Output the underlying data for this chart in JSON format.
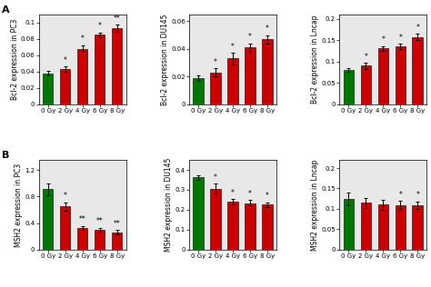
{
  "row_A": {
    "PC3": {
      "ylabel": "Bcl-2 expression in PC3",
      "ylim": [
        0,
        0.11
      ],
      "yticks": [
        0,
        0.02,
        0.04,
        0.06,
        0.08,
        0.1
      ],
      "values": [
        0.038,
        0.043,
        0.068,
        0.085,
        0.093
      ],
      "errors": [
        0.003,
        0.003,
        0.004,
        0.003,
        0.004
      ],
      "colors": [
        "#007700",
        "#cc0000",
        "#cc0000",
        "#cc0000",
        "#cc0000"
      ],
      "stars": [
        "",
        "*",
        "*",
        "*",
        "**"
      ]
    },
    "DU145": {
      "ylabel": "Bcl-2 expression in DU145",
      "ylim": [
        0,
        0.065
      ],
      "yticks": [
        0,
        0.02,
        0.04,
        0.06
      ],
      "values": [
        0.019,
        0.023,
        0.033,
        0.041,
        0.047
      ],
      "errors": [
        0.002,
        0.003,
        0.004,
        0.003,
        0.003
      ],
      "colors": [
        "#007700",
        "#cc0000",
        "#cc0000",
        "#cc0000",
        "#cc0000"
      ],
      "stars": [
        "",
        "*",
        "*",
        "*",
        "*"
      ]
    },
    "Lncap": {
      "ylabel": "Bcl-2 expression in Lncap",
      "ylim": [
        0,
        0.21
      ],
      "yticks": [
        0,
        0.05,
        0.1,
        0.15,
        0.2
      ],
      "values": [
        0.08,
        0.09,
        0.13,
        0.135,
        0.157
      ],
      "errors": [
        0.005,
        0.007,
        0.006,
        0.006,
        0.007
      ],
      "colors": [
        "#007700",
        "#cc0000",
        "#cc0000",
        "#cc0000",
        "#cc0000"
      ],
      "stars": [
        "",
        "*",
        "*",
        "*",
        "*"
      ]
    }
  },
  "row_B": {
    "PC3": {
      "ylabel": "MSH2 expression in PC3",
      "ylim": [
        0,
        1.35
      ],
      "yticks": [
        0,
        0.4,
        0.8,
        1.2
      ],
      "values": [
        0.91,
        0.65,
        0.33,
        0.3,
        0.265
      ],
      "errors": [
        0.09,
        0.065,
        0.03,
        0.03,
        0.03
      ],
      "colors": [
        "#007700",
        "#cc0000",
        "#cc0000",
        "#cc0000",
        "#cc0000"
      ],
      "stars": [
        "",
        "*",
        "**",
        "**",
        "**"
      ]
    },
    "DU145": {
      "ylabel": "MSH2 expression in DU145",
      "ylim": [
        0,
        0.45
      ],
      "yticks": [
        0,
        0.1,
        0.2,
        0.3,
        0.4
      ],
      "values": [
        0.362,
        0.305,
        0.24,
        0.233,
        0.225
      ],
      "errors": [
        0.013,
        0.025,
        0.013,
        0.015,
        0.012
      ],
      "colors": [
        "#007700",
        "#cc0000",
        "#cc0000",
        "#cc0000",
        "#cc0000"
      ],
      "stars": [
        "",
        "*",
        "*",
        "*",
        "*"
      ]
    },
    "Lncap": {
      "ylabel": "MSH2 expression in Lncap",
      "ylim": [
        0,
        0.22
      ],
      "yticks": [
        0,
        0.05,
        0.1,
        0.15,
        0.2
      ],
      "values": [
        0.124,
        0.115,
        0.11,
        0.109,
        0.109
      ],
      "errors": [
        0.016,
        0.012,
        0.012,
        0.01,
        0.009
      ],
      "colors": [
        "#007700",
        "#cc0000",
        "#cc0000",
        "#cc0000",
        "#cc0000"
      ],
      "stars": [
        "",
        "",
        "",
        "*",
        "*"
      ]
    }
  },
  "xticklabels": [
    "0 Gy",
    "2 Gy",
    "4 Gy",
    "6 Gy",
    "8 Gy"
  ],
  "panel_labels": [
    "A",
    "B"
  ],
  "background_color": "#ffffff",
  "axes_bg_color": "#e8e8e8",
  "bar_width": 0.6,
  "fontsize_ylabel": 5.5,
  "fontsize_ticks": 5.0,
  "fontsize_stars": 5.5,
  "fontsize_panel": 8
}
